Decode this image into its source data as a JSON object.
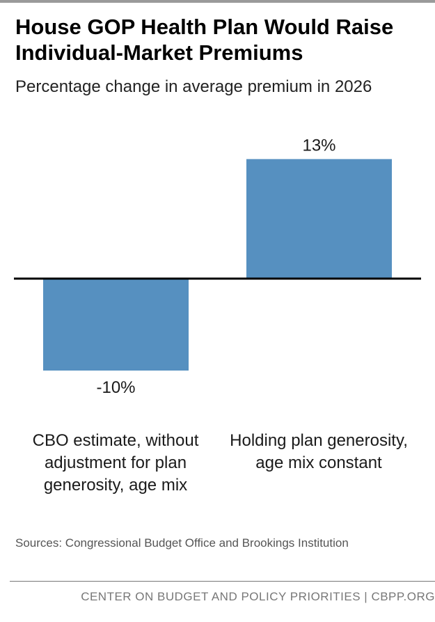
{
  "header": {
    "title": "House GOP Health Plan Would Raise Individual-Market Premiums",
    "subtitle": "Percentage change in average premium in 2026"
  },
  "chart_data": {
    "type": "bar",
    "title": "House GOP Health Plan Would Raise Individual-Market Premiums",
    "subtitle": "Percentage change in average premium in 2026",
    "categories": [
      "CBO estimate, without adjustment for plan generosity, age mix",
      "Holding plan generosity, age mix constant"
    ],
    "values": [
      -10,
      13
    ],
    "data_labels": [
      "-10%",
      "13%"
    ],
    "xlabel": "",
    "ylabel": "",
    "ylim": [
      -10,
      13
    ],
    "grid": false,
    "bar_color": "#5690c0",
    "axis_color": "#000000"
  },
  "footer": {
    "sources": "Sources: Congressional Budget Office and Brookings Institution",
    "org": "CENTER ON BUDGET AND POLICY PRIORITIES | CBPP.ORG"
  }
}
